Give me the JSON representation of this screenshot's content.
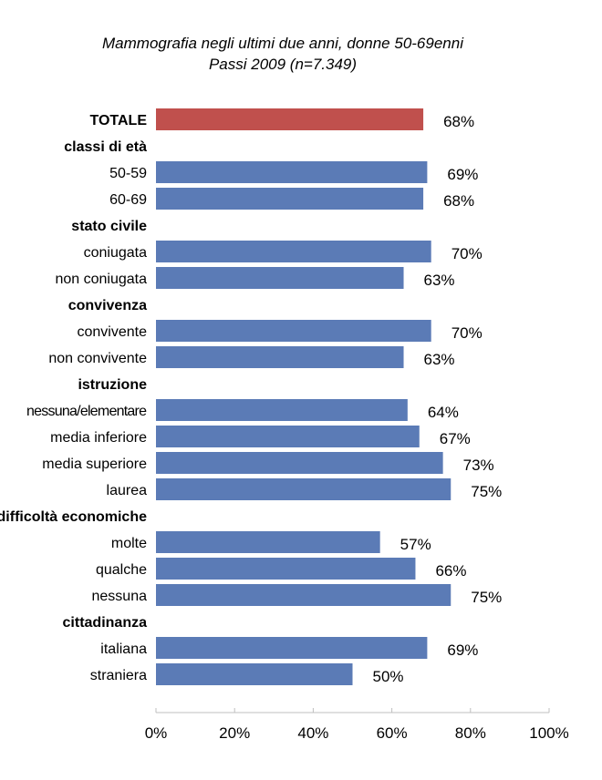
{
  "chart_data": {
    "type": "bar",
    "orientation": "horizontal",
    "title": "Mammografia negli ultimi due anni, donne 50-69enni",
    "subtitle": "Passi 2009 (n=7.349)",
    "xlabel": "",
    "ylabel": "",
    "xlim": [
      0,
      100
    ],
    "x_ticks": [
      "0%",
      "20%",
      "40%",
      "60%",
      "80%",
      "100%"
    ],
    "grid": false,
    "colors": {
      "total": "#C0504D",
      "default": "#5B7BB6"
    },
    "rows": [
      {
        "label": "TOTALE",
        "value": 68,
        "bold": true,
        "highlight": true
      },
      {
        "label": "classi di età",
        "header": true
      },
      {
        "label": "50-59",
        "value": 69
      },
      {
        "label": "60-69",
        "value": 68
      },
      {
        "label": "stato civile",
        "header": true
      },
      {
        "label": "coniugata",
        "value": 70
      },
      {
        "label": "non coniugata",
        "value": 63
      },
      {
        "label": "convivenza",
        "header": true
      },
      {
        "label": "convivente",
        "value": 70
      },
      {
        "label": "non convivente",
        "value": 63
      },
      {
        "label": "istruzione",
        "header": true
      },
      {
        "label": "nessuna/elementare",
        "value": 64
      },
      {
        "label": "media inferiore",
        "value": 67
      },
      {
        "label": "media superiore",
        "value": 73
      },
      {
        "label": "laurea",
        "value": 75
      },
      {
        "label": "difficoltà economiche",
        "header": true
      },
      {
        "label": "molte",
        "value": 57
      },
      {
        "label": "qualche",
        "value": 66
      },
      {
        "label": "nessuna",
        "value": 75
      },
      {
        "label": "cittadinanza",
        "header": true
      },
      {
        "label": "italiana",
        "value": 69
      },
      {
        "label": "straniera",
        "value": 50
      }
    ]
  }
}
